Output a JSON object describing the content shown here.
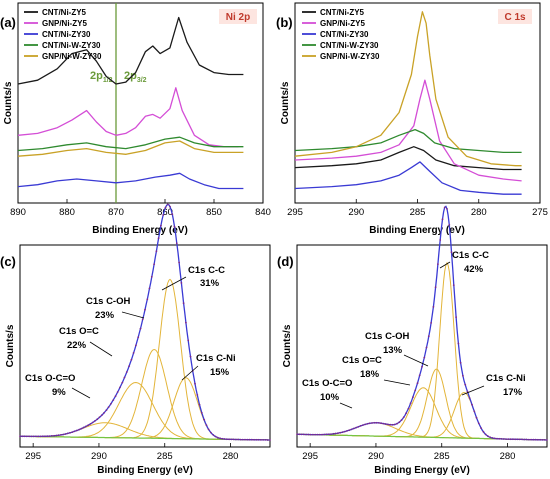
{
  "colors": {
    "cnt_ni_zy5": "#1a1a1a",
    "gnp_ni_zy5": "#d44ed6",
    "cnt_ni_zy30": "#3a3ad4",
    "cnt_ni_w_zy30": "#2f8a2f",
    "gnp_ni_w_zy30": "#c9a227",
    "tag_bg": "#fde5e0",
    "tag_text": "#c0392b",
    "envelope": "#3a3ad4",
    "component": "#e3b53a",
    "background_fit": "#74c442",
    "data_dots": "#7f2a8a",
    "reference_line": "#6a9a3a"
  },
  "chart_data": [
    {
      "panel": "(a)",
      "type": "line",
      "tag": "Ni 2p",
      "xlabel": "Binding Energy (eV)",
      "ylabel": "Counts/s",
      "xlim": [
        890,
        840
      ],
      "x_ticks": [
        "890",
        "880",
        "870",
        "860",
        "850",
        "840"
      ],
      "legend_placement": "top-left",
      "reference_line_x": 870,
      "peak_labels": [
        "2p1/2",
        "2p3/2"
      ],
      "legend": [
        "CNT/Ni-ZY5",
        "GNP/Ni-ZY5",
        "CNT/Ni-ZY30",
        "CNT/Ni-W-ZY30",
        "GNP/Ni-W-ZY30"
      ],
      "series": [
        {
          "name": "CNT/Ni-ZY5",
          "x": [
            890,
            886,
            882,
            879,
            876,
            874,
            872,
            870,
            868,
            866,
            864,
            862.5,
            861,
            859,
            857.2,
            855.5,
            853,
            850,
            847,
            844
          ],
          "y": [
            0.6,
            0.62,
            0.68,
            0.76,
            0.78,
            0.72,
            0.64,
            0.6,
            0.61,
            0.66,
            0.77,
            0.8,
            0.76,
            0.79,
            0.95,
            0.82,
            0.7,
            0.66,
            0.65,
            0.65
          ]
        },
        {
          "name": "GNP/Ni-ZY5",
          "x": [
            890,
            886,
            882,
            879,
            876,
            874,
            872,
            870,
            868,
            866,
            864,
            862.5,
            861,
            859,
            857.8,
            856.5,
            854,
            851,
            848,
            845
          ],
          "y": [
            0.33,
            0.34,
            0.37,
            0.41,
            0.46,
            0.4,
            0.35,
            0.33,
            0.34,
            0.37,
            0.43,
            0.44,
            0.42,
            0.47,
            0.58,
            0.46,
            0.33,
            0.28,
            0.27,
            0.27
          ]
        },
        {
          "name": "CNT/Ni-ZY30",
          "x": [
            890,
            886,
            882,
            878,
            874,
            870,
            866,
            862,
            859,
            857,
            855,
            852,
            849,
            846,
            844
          ],
          "y": [
            0.06,
            0.07,
            0.09,
            0.1,
            0.09,
            0.08,
            0.09,
            0.11,
            0.12,
            0.13,
            0.1,
            0.07,
            0.05,
            0.05,
            0.05
          ]
        },
        {
          "name": "CNT/Ni-W-ZY30",
          "x": [
            890,
            885,
            880,
            876,
            872,
            868,
            864,
            860,
            857,
            854,
            850,
            846,
            844
          ],
          "y": [
            0.25,
            0.26,
            0.28,
            0.29,
            0.27,
            0.26,
            0.28,
            0.31,
            0.32,
            0.29,
            0.27,
            0.27,
            0.27
          ]
        },
        {
          "name": "GNP/Ni-W-ZY30",
          "x": [
            890,
            885,
            880,
            876,
            872,
            868,
            864,
            860,
            857,
            854,
            850,
            846,
            844
          ],
          "y": [
            0.22,
            0.23,
            0.25,
            0.26,
            0.24,
            0.23,
            0.25,
            0.29,
            0.3,
            0.26,
            0.24,
            0.24,
            0.24
          ]
        }
      ]
    },
    {
      "panel": "(b)",
      "type": "line",
      "tag": "C 1s",
      "xlabel": "Binding Energy (eV)",
      "ylabel": "Counts/s",
      "xlim": [
        295,
        275
      ],
      "x_ticks": [
        "295",
        "290",
        "285",
        "280",
        "275"
      ],
      "legend_placement": "top-left",
      "legend": [
        "CNT/Ni-ZY5",
        "GNP/Ni-ZY5",
        "CNT/Ni-ZY30",
        "CNT/Ni-W-ZY30",
        "GNP/Ni-W-ZY30"
      ],
      "series": [
        {
          "name": "CNT/Ni-ZY5",
          "x": [
            295,
            292,
            290,
            288,
            286.5,
            285.3,
            284.5,
            283.5,
            282,
            280,
            278,
            276.5
          ],
          "y": [
            0.16,
            0.17,
            0.18,
            0.2,
            0.24,
            0.27,
            0.25,
            0.2,
            0.17,
            0.16,
            0.15,
            0.15
          ]
        },
        {
          "name": "GNP/Ni-ZY5",
          "x": [
            295,
            292,
            290,
            288,
            286.5,
            285.3,
            284.8,
            284.4,
            284.0,
            283.2,
            282,
            280,
            278,
            276.5
          ],
          "y": [
            0.2,
            0.21,
            0.22,
            0.24,
            0.28,
            0.38,
            0.52,
            0.62,
            0.52,
            0.3,
            0.18,
            0.12,
            0.1,
            0.09
          ]
        },
        {
          "name": "CNT/Ni-ZY30",
          "x": [
            295,
            292,
            290,
            288,
            286.5,
            285.5,
            284.8,
            284.0,
            283,
            281.5,
            280,
            278,
            276.5
          ],
          "y": [
            0.05,
            0.06,
            0.07,
            0.09,
            0.12,
            0.16,
            0.19,
            0.14,
            0.08,
            0.04,
            0.03,
            0.02,
            0.02
          ]
        },
        {
          "name": "CNT/Ni-W-ZY30",
          "x": [
            295,
            292,
            290,
            288,
            286.5,
            285.2,
            284.5,
            283.6,
            282,
            280,
            278,
            276.5
          ],
          "y": [
            0.25,
            0.26,
            0.27,
            0.29,
            0.33,
            0.36,
            0.34,
            0.29,
            0.26,
            0.25,
            0.24,
            0.24
          ]
        },
        {
          "name": "GNP/Ni-W-ZY30",
          "x": [
            295,
            292,
            290,
            288,
            286.5,
            285.5,
            285.0,
            284.6,
            284.3,
            284.0,
            283.5,
            282.5,
            281,
            279,
            277,
            276.5
          ],
          "y": [
            0.22,
            0.24,
            0.27,
            0.33,
            0.45,
            0.65,
            0.85,
            0.98,
            0.92,
            0.75,
            0.52,
            0.32,
            0.22,
            0.18,
            0.17,
            0.17
          ]
        }
      ]
    },
    {
      "panel": "(c)",
      "type": "line",
      "xlabel": "Binding Energy (eV)",
      "ylabel": "Counts/s",
      "xlim": [
        296,
        277
      ],
      "x_ticks": [
        "295",
        "290",
        "285",
        "280"
      ],
      "components": [
        {
          "label": "C1s C-C",
          "percent": "31%",
          "center": 284.6,
          "height": 0.86,
          "width": 0.8
        },
        {
          "label": "C1s C-OH",
          "percent": "23%",
          "center": 285.8,
          "height": 0.48,
          "width": 0.95
        },
        {
          "label": "C1s O=C",
          "percent": "22%",
          "center": 287.2,
          "height": 0.3,
          "width": 1.3
        },
        {
          "label": "C1s O-C=O",
          "percent": "9%",
          "center": 289.5,
          "height": 0.08,
          "width": 1.7
        },
        {
          "label": "C1s C-Ni",
          "percent": "15%",
          "center": 283.4,
          "height": 0.33,
          "width": 0.9
        }
      ],
      "background": {
        "x": [
          296,
          277
        ],
        "y": [
          0.02,
          0.0
        ]
      }
    },
    {
      "panel": "(d)",
      "type": "line",
      "xlabel": "Binding Energy (eV)",
      "ylabel": "Counts/s",
      "xlim": [
        296,
        277
      ],
      "x_ticks": [
        "295",
        "290",
        "285",
        "280"
      ],
      "components": [
        {
          "label": "C1s C-C",
          "percent": "42%",
          "center": 284.6,
          "height": 0.92,
          "width": 0.55
        },
        {
          "label": "C1s C-OH",
          "percent": "13%",
          "center": 285.4,
          "height": 0.36,
          "width": 0.7
        },
        {
          "label": "C1s O=C",
          "percent": "18%",
          "center": 286.4,
          "height": 0.26,
          "width": 0.95
        },
        {
          "label": "C1s O-C=O",
          "percent": "10%",
          "center": 290.0,
          "height": 0.07,
          "width": 1.5
        },
        {
          "label": "C1s C-Ni",
          "percent": "17%",
          "center": 283.3,
          "height": 0.24,
          "width": 0.75
        }
      ],
      "background": {
        "x": [
          296,
          277
        ],
        "y": [
          0.03,
          0.0
        ]
      }
    }
  ]
}
